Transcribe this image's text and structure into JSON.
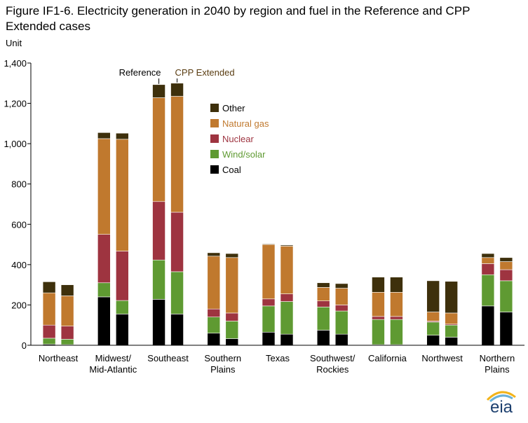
{
  "title": "Figure IF1-6. Electricity generation in 2040 by region and fuel in the Reference and CPP Extended cases",
  "logo_text": "eia",
  "colors": {
    "Coal": "#000000",
    "Wind/solar": "#5f9a32",
    "Nuclear": "#9e3440",
    "Natural gas": "#c0792e",
    "Other": "#3e300c"
  },
  "chart_data": {
    "type": "bar",
    "stacked": true,
    "title": "Figure IF1-6. Electricity generation in 2040 by region and fuel in the Reference and CPP Extended cases",
    "ylabel": "Unit",
    "xlabel": "",
    "ylim": [
      0,
      1400
    ],
    "yticks": [
      "0",
      "200",
      "400",
      "600",
      "800",
      "1,000",
      "1,200",
      "1,400"
    ],
    "ytick_values": [
      0,
      200,
      400,
      600,
      800,
      1000,
      1200,
      1400
    ],
    "grid": false,
    "legend_position": "upper-center",
    "legend": [
      "Other",
      "Natural gas",
      "Nuclear",
      "Wind/solar",
      "Coal"
    ],
    "stack_order": [
      "Coal",
      "Wind/solar",
      "Nuclear",
      "Natural gas",
      "Other"
    ],
    "cases": [
      "Reference",
      "CPP Extended"
    ],
    "case_annotations": {
      "reference": "Reference",
      "cpp": "CPP Extended"
    },
    "categories": [
      "Northeast",
      "Midwest/\nMid-Atlantic",
      "Southeast",
      "Southern\nPlains",
      "Texas",
      "Southwest/\nRockies",
      "California",
      "Northwest",
      "Northern\nPlains"
    ],
    "series": [
      {
        "name": "Coal",
        "reference": [
          5,
          240,
          228,
          60,
          65,
          75,
          3,
          50,
          195
        ],
        "cpp": [
          3,
          155,
          155,
          33,
          55,
          55,
          3,
          40,
          165
        ]
      },
      {
        "name": "Wind/solar",
        "reference": [
          30,
          70,
          195,
          80,
          130,
          115,
          125,
          65,
          155
        ],
        "cpp": [
          27,
          67,
          210,
          87,
          162,
          115,
          125,
          60,
          155
        ]
      },
      {
        "name": "Nuclear",
        "reference": [
          65,
          240,
          290,
          40,
          35,
          30,
          15,
          5,
          55
        ],
        "cpp": [
          65,
          245,
          295,
          40,
          38,
          30,
          15,
          5,
          55
        ]
      },
      {
        "name": "Natural gas",
        "reference": [
          160,
          475,
          515,
          262,
          270,
          67,
          120,
          45,
          30
        ],
        "cpp": [
          150,
          555,
          575,
          275,
          237,
          83,
          120,
          55,
          40
        ]
      },
      {
        "name": "Other",
        "reference": [
          55,
          30,
          65,
          17,
          3,
          23,
          75,
          155,
          20
        ],
        "cpp": [
          55,
          30,
          65,
          20,
          5,
          23,
          75,
          157,
          20
        ]
      }
    ]
  }
}
